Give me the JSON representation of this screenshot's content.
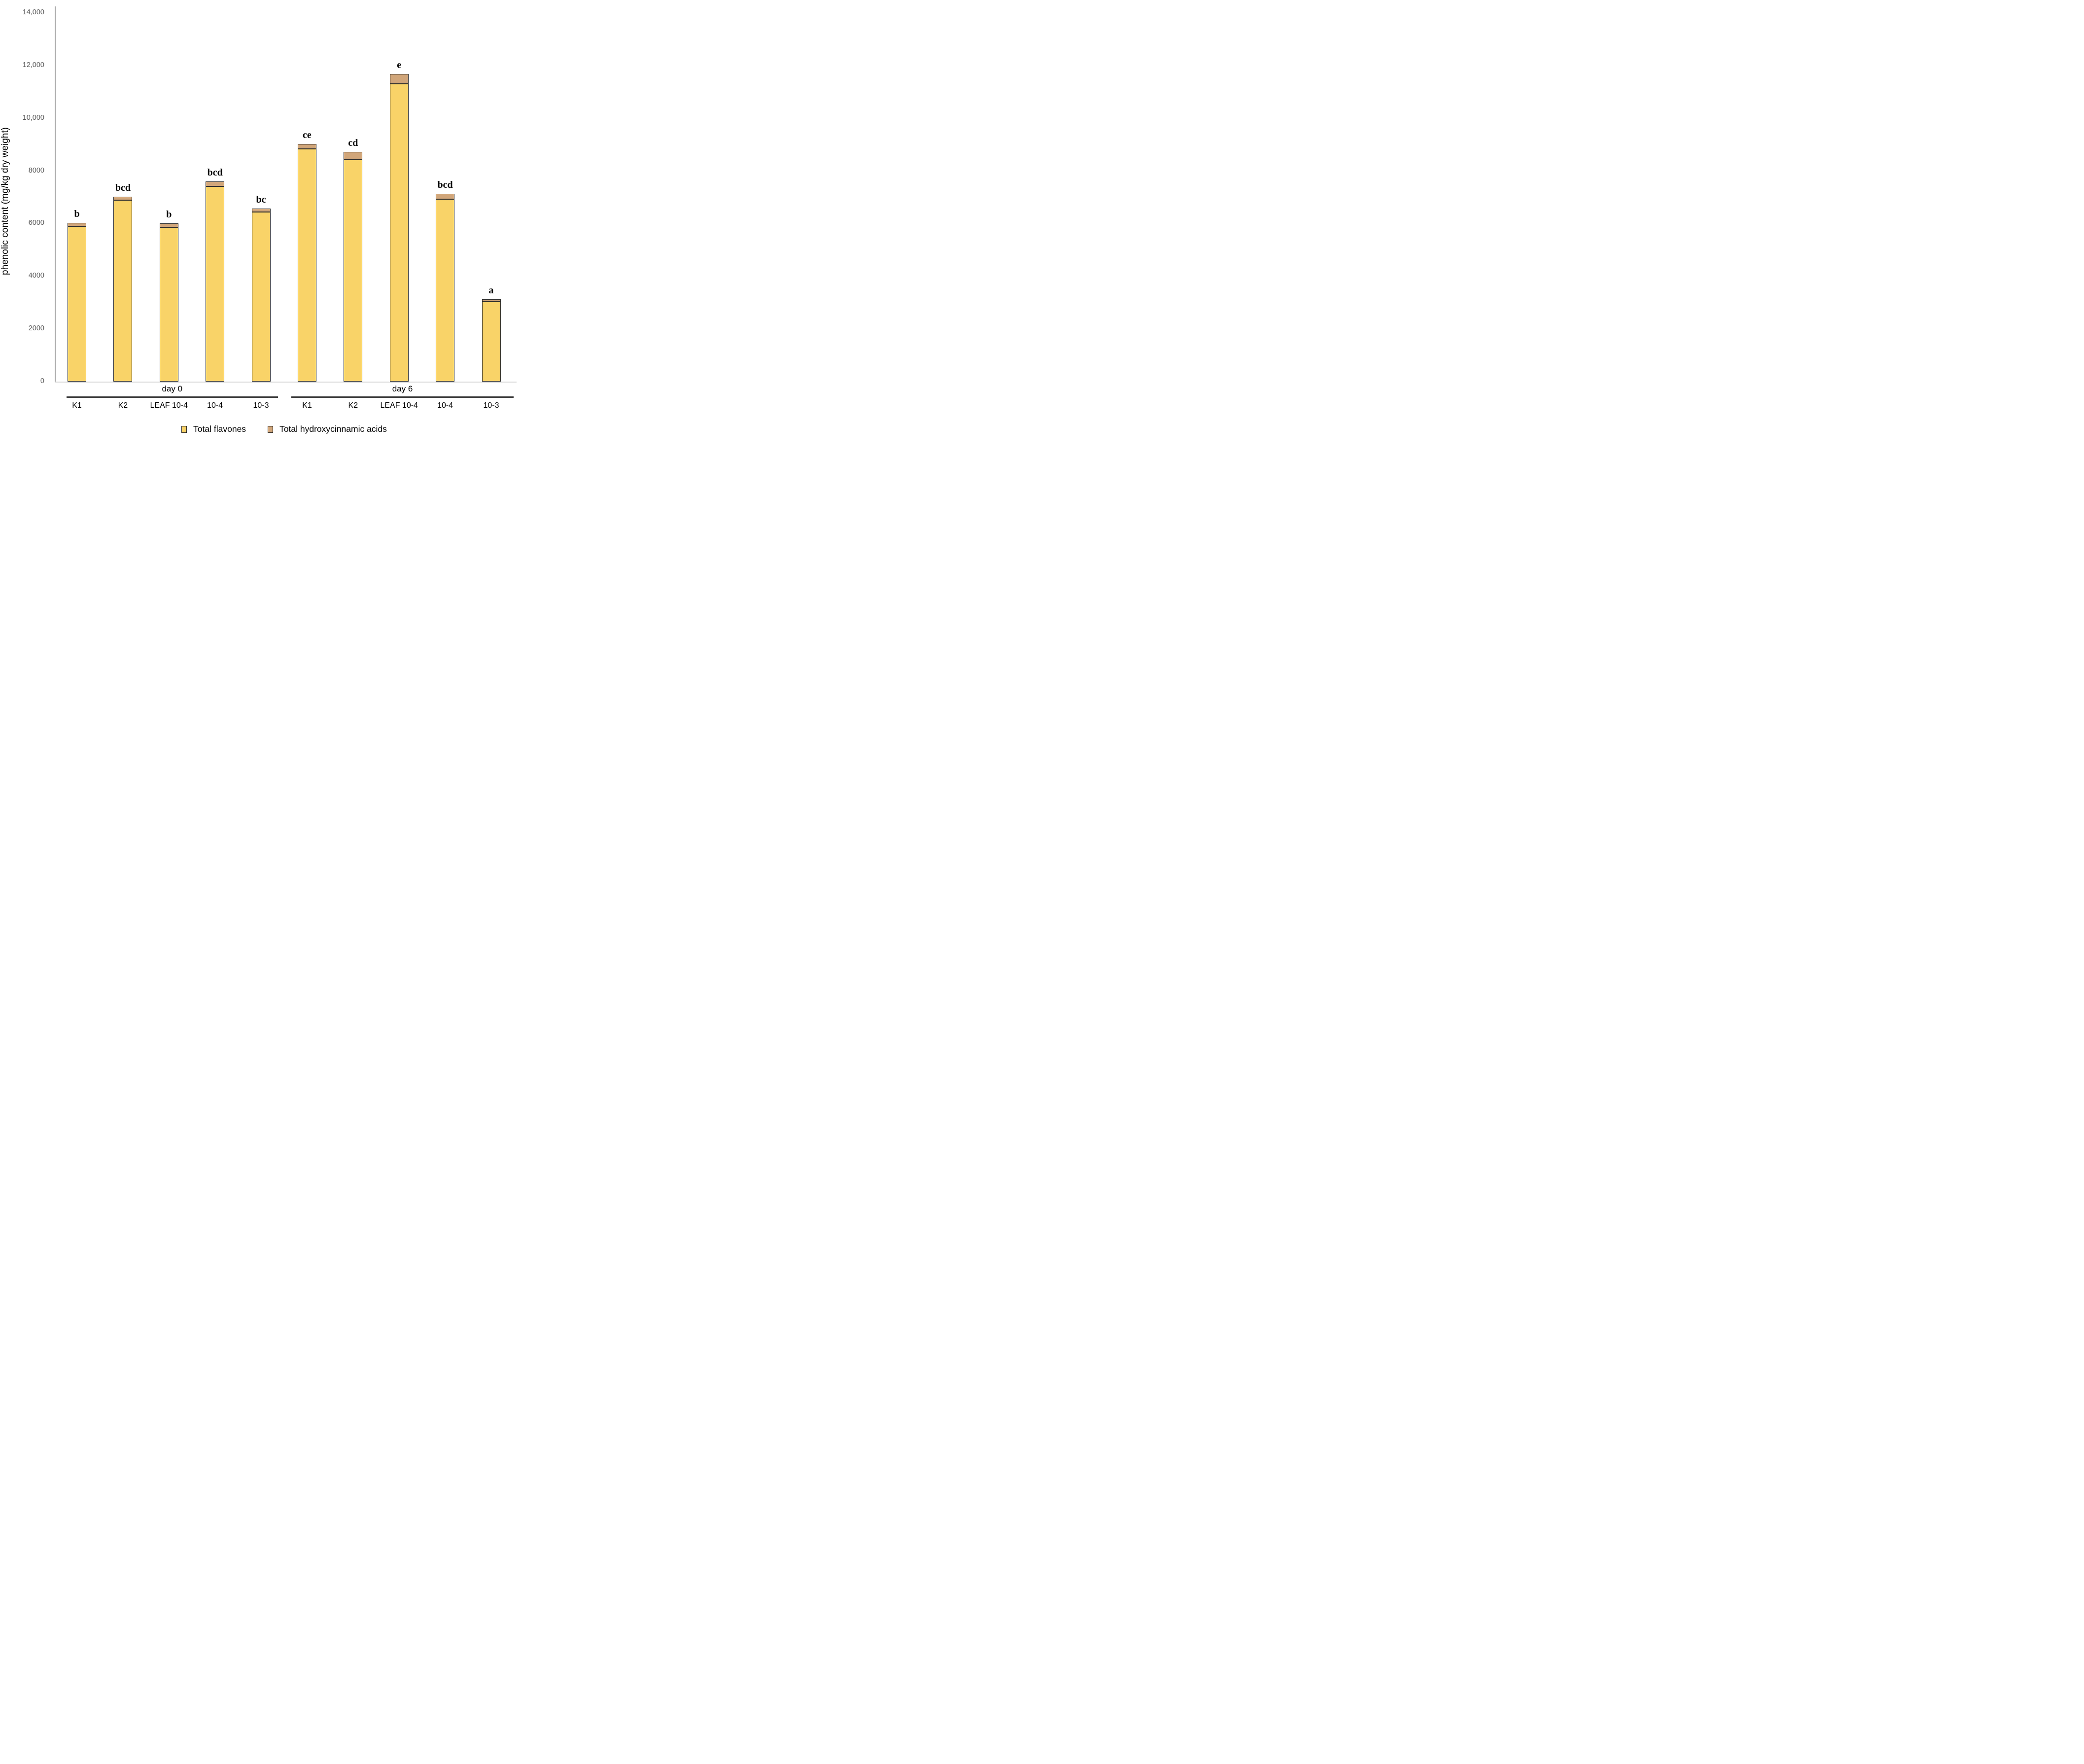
{
  "chart_data": {
    "type": "bar",
    "stacked": true,
    "title": "",
    "xlabel": "",
    "ylabel": "phenolic content (mg/kg dry weight)",
    "ylim": [
      0,
      14000
    ],
    "ytick_step": 2000,
    "ytick_labels": [
      "0",
      "2000",
      "4000",
      "6000",
      "8000",
      "10,000",
      "12,000",
      "14,000"
    ],
    "grid": false,
    "legend_position": "bottom",
    "groups": [
      {
        "label": "day 0",
        "categories": [
          "K1",
          "K2",
          "LEAF 10-4",
          "10-4",
          "10-3"
        ]
      },
      {
        "label": "day 6",
        "categories": [
          "K1",
          "K2",
          "LEAF 10-4",
          "10-4",
          "10-3"
        ]
      }
    ],
    "series": [
      {
        "name": "Total flavones",
        "color": "#F9D368",
        "values": [
          5890,
          6880,
          5850,
          7410,
          6430,
          8830,
          8420,
          11310,
          6930,
          3030
        ]
      },
      {
        "name": "Total hydroxycinnamic acids",
        "color": "#D1A67A",
        "values": [
          130,
          130,
          160,
          190,
          140,
          190,
          300,
          360,
          210,
          90
        ]
      }
    ],
    "bar_totals": [
      6020,
      7010,
      6010,
      7600,
      6570,
      9020,
      8720,
      11670,
      7140,
      3120
    ],
    "significance_letters": [
      "b",
      "bcd",
      "b",
      "bcd",
      "bc",
      "ce",
      "cd",
      "e",
      "bcd",
      "a"
    ]
  },
  "colors": {
    "flavones": "#F9D368",
    "hydroxycinnamic": "#D1A67A",
    "bar_border": "#2E2E2E",
    "y_axis_line": "#A6A6A6",
    "baseline": "#D9D9D9",
    "group_line": "#3F3F3F",
    "tick_text": "#595959",
    "text": "#000000"
  }
}
